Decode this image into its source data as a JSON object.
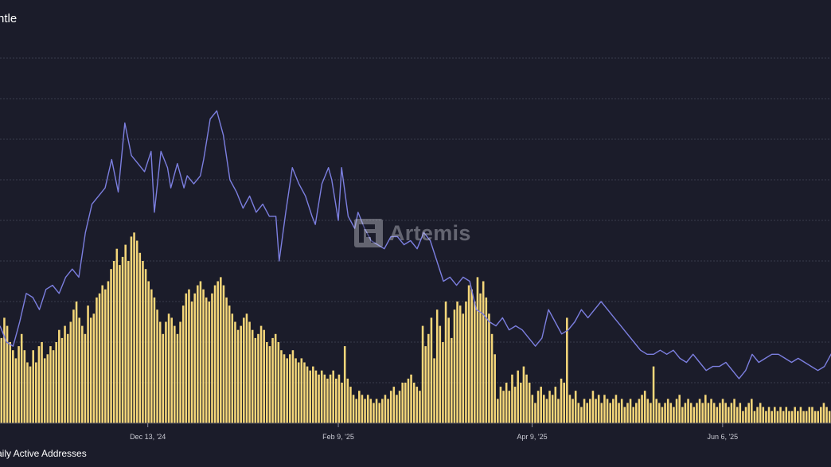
{
  "header": {
    "title_fragment": "ntle"
  },
  "legend": {
    "label_fragment": "aily Active Addresses"
  },
  "watermark": {
    "text": "Artemis"
  },
  "colors": {
    "background": "#1b1c2a",
    "gridline": "#3a3b4c",
    "bar_series": "#f5d77a",
    "line_series": "#7c7fe0"
  },
  "chart_data": {
    "type": "bar+line",
    "x_start": "2024-10-29",
    "x_end": "2025-07-09",
    "x_tick_labels": [
      {
        "date": "2024-12-13",
        "label": "Dec 13, '24"
      },
      {
        "date": "2025-02-09",
        "label": "Feb 9, '25"
      },
      {
        "date": "2025-04-09",
        "label": "Apr 9, '25"
      },
      {
        "date": "2025-06-06",
        "label": "Jun 6, '25"
      }
    ],
    "ylim": [
      0,
      10
    ],
    "grid": true,
    "series": [
      {
        "name": "aily Active Addresses",
        "type": "bar",
        "values": [
          2.1,
          2.6,
          2.4,
          2.0,
          1.8,
          1.6,
          1.9,
          2.2,
          1.8,
          1.5,
          1.4,
          1.8,
          1.5,
          1.9,
          2.0,
          1.6,
          1.7,
          1.9,
          1.8,
          2.0,
          2.3,
          2.1,
          2.4,
          2.2,
          2.5,
          2.8,
          3.0,
          2.6,
          2.4,
          2.2,
          2.9,
          2.6,
          2.7,
          3.1,
          3.2,
          3.4,
          3.3,
          3.5,
          3.8,
          4.0,
          4.3,
          3.9,
          4.1,
          4.4,
          4.0,
          4.6,
          4.7,
          4.5,
          4.2,
          4.0,
          3.8,
          3.5,
          3.3,
          3.1,
          2.8,
          2.5,
          2.2,
          2.5,
          2.7,
          2.6,
          2.4,
          2.2,
          2.5,
          2.9,
          3.2,
          3.3,
          3.0,
          3.2,
          3.4,
          3.5,
          3.3,
          3.1,
          3.0,
          3.2,
          3.4,
          3.5,
          3.6,
          3.4,
          3.1,
          2.9,
          2.7,
          2.5,
          2.3,
          2.4,
          2.6,
          2.7,
          2.5,
          2.3,
          2.1,
          2.2,
          2.4,
          2.3,
          2.0,
          1.9,
          2.1,
          2.2,
          2.0,
          1.8,
          1.7,
          1.6,
          1.7,
          1.8,
          1.6,
          1.5,
          1.6,
          1.5,
          1.4,
          1.3,
          1.4,
          1.3,
          1.2,
          1.3,
          1.2,
          1.1,
          1.2,
          1.3,
          1.1,
          1.2,
          1.0,
          1.9,
          1.1,
          0.9,
          0.7,
          0.6,
          0.8,
          0.7,
          0.6,
          0.7,
          0.6,
          0.5,
          0.6,
          0.5,
          0.6,
          0.7,
          0.6,
          0.8,
          0.9,
          0.7,
          0.8,
          1.0,
          1.0,
          1.1,
          1.2,
          1.0,
          0.9,
          0.8,
          2.4,
          1.9,
          2.2,
          2.6,
          1.6,
          2.8,
          2.4,
          2.0,
          3.0,
          2.6,
          2.1,
          2.8,
          3.0,
          2.9,
          2.7,
          3.0,
          3.4,
          3.3,
          3.0,
          3.6,
          3.2,
          3.5,
          3.1,
          2.7,
          2.2,
          1.7,
          0.6,
          0.9,
          0.8,
          1.0,
          0.8,
          1.2,
          0.9,
          1.3,
          1.0,
          1.4,
          1.2,
          1.0,
          0.7,
          0.5,
          0.8,
          0.9,
          0.7,
          0.6,
          0.8,
          0.7,
          0.9,
          0.6,
          1.1,
          1.0,
          2.6,
          0.7,
          0.6,
          0.8,
          0.5,
          0.4,
          0.6,
          0.5,
          0.6,
          0.8,
          0.6,
          0.7,
          0.5,
          0.7,
          0.6,
          0.5,
          0.6,
          0.7,
          0.5,
          0.6,
          0.4,
          0.5,
          0.6,
          0.4,
          0.5,
          0.6,
          0.7,
          0.8,
          0.6,
          0.5,
          1.4,
          0.6,
          0.5,
          0.4,
          0.5,
          0.6,
          0.5,
          0.4,
          0.6,
          0.7,
          0.4,
          0.5,
          0.6,
          0.5,
          0.4,
          0.5,
          0.6,
          0.5,
          0.7,
          0.5,
          0.6,
          0.5,
          0.4,
          0.5,
          0.6,
          0.5,
          0.4,
          0.5,
          0.6,
          0.4,
          0.5,
          0.3,
          0.4,
          0.5,
          0.6,
          0.3,
          0.4,
          0.5,
          0.4,
          0.3,
          0.4,
          0.3,
          0.4,
          0.3,
          0.4,
          0.3,
          0.4,
          0.3,
          0.3,
          0.4,
          0.3,
          0.4,
          0.3,
          0.3,
          0.4,
          0.4,
          0.3,
          0.3,
          0.4,
          0.5,
          0.4,
          0.3
        ]
      },
      {
        "type": "line",
        "points": [
          [
            0,
            2.4
          ],
          [
            2,
            2.0
          ],
          [
            4,
            1.9
          ],
          [
            6,
            2.5
          ],
          [
            8,
            3.2
          ],
          [
            10,
            3.1
          ],
          [
            12,
            2.8
          ],
          [
            14,
            3.3
          ],
          [
            16,
            3.4
          ],
          [
            18,
            3.2
          ],
          [
            20,
            3.6
          ],
          [
            22,
            3.8
          ],
          [
            24,
            3.6
          ],
          [
            26,
            4.7
          ],
          [
            28,
            5.4
          ],
          [
            30,
            5.6
          ],
          [
            32,
            5.8
          ],
          [
            34,
            6.5
          ],
          [
            36,
            5.7
          ],
          [
            38,
            7.4
          ],
          [
            40,
            6.6
          ],
          [
            42,
            6.4
          ],
          [
            44,
            6.2
          ],
          [
            46,
            6.7
          ],
          [
            47,
            5.2
          ],
          [
            49,
            6.7
          ],
          [
            51,
            6.3
          ],
          [
            52,
            5.8
          ],
          [
            54,
            6.4
          ],
          [
            56,
            5.8
          ],
          [
            57,
            6.1
          ],
          [
            59,
            5.9
          ],
          [
            61,
            6.1
          ],
          [
            62,
            6.5
          ],
          [
            64,
            7.5
          ],
          [
            66,
            7.7
          ],
          [
            68,
            7.1
          ],
          [
            70,
            6.0
          ],
          [
            72,
            5.7
          ],
          [
            74,
            5.3
          ],
          [
            76,
            5.6
          ],
          [
            78,
            5.2
          ],
          [
            80,
            5.4
          ],
          [
            82,
            5.1
          ],
          [
            84,
            5.1
          ],
          [
            85,
            4.0
          ],
          [
            87,
            5.2
          ],
          [
            89,
            6.3
          ],
          [
            91,
            5.9
          ],
          [
            93,
            5.6
          ],
          [
            95,
            5.1
          ],
          [
            96,
            4.9
          ],
          [
            98,
            5.9
          ],
          [
            100,
            6.3
          ],
          [
            101,
            6.0
          ],
          [
            103,
            5.0
          ],
          [
            104,
            6.3
          ],
          [
            106,
            5.1
          ],
          [
            108,
            4.8
          ],
          [
            109,
            5.2
          ],
          [
            111,
            4.8
          ],
          [
            113,
            4.5
          ],
          [
            115,
            4.4
          ],
          [
            117,
            4.3
          ],
          [
            119,
            4.6
          ],
          [
            121,
            4.6
          ],
          [
            123,
            4.4
          ],
          [
            125,
            4.5
          ],
          [
            127,
            4.3
          ],
          [
            129,
            4.7
          ],
          [
            131,
            4.5
          ],
          [
            133,
            4.0
          ],
          [
            135,
            3.5
          ],
          [
            137,
            3.6
          ],
          [
            139,
            3.4
          ],
          [
            141,
            3.6
          ],
          [
            143,
            3.5
          ],
          [
            145,
            2.8
          ],
          [
            147,
            2.7
          ],
          [
            149,
            2.5
          ],
          [
            151,
            2.4
          ],
          [
            153,
            2.6
          ],
          [
            155,
            2.3
          ],
          [
            157,
            2.4
          ],
          [
            159,
            2.3
          ],
          [
            161,
            2.1
          ],
          [
            163,
            1.9
          ],
          [
            165,
            2.1
          ],
          [
            167,
            2.8
          ],
          [
            169,
            2.5
          ],
          [
            171,
            2.2
          ],
          [
            173,
            2.3
          ],
          [
            175,
            2.5
          ],
          [
            177,
            2.8
          ],
          [
            179,
            2.6
          ],
          [
            181,
            2.8
          ],
          [
            183,
            3.0
          ],
          [
            185,
            2.8
          ],
          [
            187,
            2.6
          ],
          [
            189,
            2.4
          ],
          [
            191,
            2.2
          ],
          [
            193,
            2.0
          ],
          [
            195,
            1.8
          ],
          [
            197,
            1.7
          ],
          [
            199,
            1.7
          ],
          [
            201,
            1.8
          ],
          [
            203,
            1.7
          ],
          [
            205,
            1.8
          ],
          [
            207,
            1.6
          ],
          [
            209,
            1.5
          ],
          [
            211,
            1.7
          ],
          [
            213,
            1.5
          ],
          [
            215,
            1.3
          ],
          [
            217,
            1.4
          ],
          [
            219,
            1.4
          ],
          [
            221,
            1.5
          ],
          [
            223,
            1.3
          ],
          [
            225,
            1.1
          ],
          [
            227,
            1.3
          ],
          [
            229,
            1.7
          ],
          [
            231,
            1.5
          ],
          [
            233,
            1.6
          ],
          [
            235,
            1.7
          ],
          [
            237,
            1.7
          ],
          [
            239,
            1.6
          ],
          [
            241,
            1.5
          ],
          [
            243,
            1.6
          ],
          [
            245,
            1.5
          ],
          [
            247,
            1.4
          ],
          [
            249,
            1.3
          ],
          [
            251,
            1.4
          ],
          [
            253,
            1.7
          ],
          [
            255,
            1.9
          ],
          [
            257,
            2.0
          ],
          [
            259,
            2.0
          ],
          [
            261,
            1.8
          ],
          [
            263,
            1.5
          ],
          [
            265,
            1.4
          ],
          [
            267,
            1.3
          ],
          [
            269,
            1.3
          ],
          [
            271,
            1.4
          ],
          [
            273,
            1.4
          ],
          [
            275,
            1.3
          ],
          [
            277,
            1.5
          ],
          [
            279,
            1.4
          ],
          [
            281,
            1.4
          ],
          [
            283,
            1.4
          ],
          [
            285,
            1.3
          ],
          [
            287,
            1.1
          ],
          [
            289,
            1.0
          ],
          [
            291,
            0.9
          ],
          [
            293,
            0.8
          ],
          [
            295,
            0.9
          ],
          [
            297,
            1.1
          ],
          [
            299,
            1.0
          ],
          [
            301,
            1.1
          ],
          [
            303,
            1.3
          ],
          [
            305,
            1.2
          ],
          [
            307,
            1.1
          ],
          [
            309,
            1.0
          ],
          [
            311,
            0.9
          ],
          [
            313,
            0.7
          ],
          [
            315,
            0.6
          ],
          [
            317,
            0.7
          ],
          [
            319,
            0.8
          ],
          [
            321,
            0.8
          ],
          [
            323,
            0.6
          ],
          [
            325,
            0.7
          ],
          [
            327,
            0.7
          ],
          [
            329,
            0.6
          ],
          [
            331,
            0.5
          ],
          [
            333,
            0.4
          ],
          [
            335,
            0.6
          ],
          [
            337,
            0.5
          ],
          [
            339,
            0.5
          ],
          [
            341,
            0.4
          ],
          [
            343,
            0.6
          ],
          [
            344,
            0.7
          ]
        ]
      }
    ]
  }
}
